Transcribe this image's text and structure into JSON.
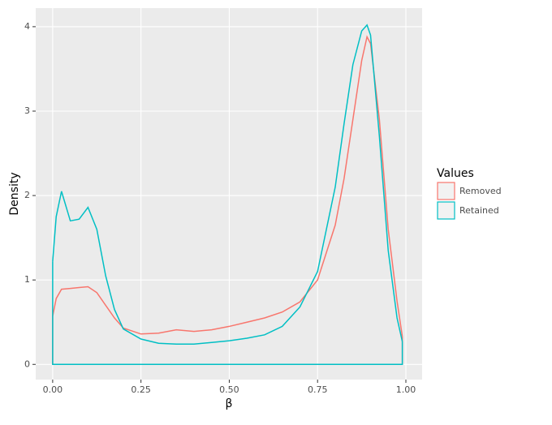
{
  "chart_data": {
    "type": "density",
    "xlabel": "β",
    "ylabel": "Density",
    "legend_title": "Values",
    "legend_position": "right",
    "x": [
      0,
      0.01,
      0.025,
      0.05,
      0.075,
      0.1,
      0.125,
      0.15,
      0.175,
      0.2,
      0.25,
      0.3,
      0.35,
      0.4,
      0.45,
      0.5,
      0.55,
      0.6,
      0.65,
      0.7,
      0.75,
      0.8,
      0.825,
      0.85,
      0.875,
      0.89,
      0.9,
      0.925,
      0.95,
      0.975,
      0.99
    ],
    "series": [
      {
        "name": "Removed",
        "color": "#f8766d",
        "values": [
          0.57,
          0.78,
          0.89,
          0.9,
          0.91,
          0.92,
          0.85,
          0.7,
          0.55,
          0.43,
          0.36,
          0.37,
          0.41,
          0.39,
          0.41,
          0.45,
          0.5,
          0.55,
          0.62,
          0.74,
          1.0,
          1.65,
          2.2,
          2.9,
          3.6,
          3.88,
          3.8,
          2.9,
          1.6,
          0.75,
          0.33
        ]
      },
      {
        "name": "Retained",
        "color": "#00bfc4",
        "values": [
          1.22,
          1.75,
          2.05,
          1.7,
          1.72,
          1.86,
          1.6,
          1.05,
          0.65,
          0.42,
          0.3,
          0.25,
          0.24,
          0.24,
          0.26,
          0.28,
          0.31,
          0.35,
          0.45,
          0.68,
          1.1,
          2.1,
          2.85,
          3.55,
          3.95,
          4.02,
          3.9,
          2.7,
          1.35,
          0.55,
          0.27
        ]
      }
    ],
    "xlim": [
      -0.048,
      1.046
    ],
    "ylim": [
      -0.18,
      4.22
    ],
    "xticks": [
      {
        "value": 0,
        "label": "0.00"
      },
      0.25,
      {
        "value": 0.5,
        "label": "0.50"
      },
      0.75,
      {
        "value": 1,
        "label": "1.00"
      }
    ],
    "yticks": [
      0,
      1,
      2,
      3,
      4
    ],
    "grid": true
  }
}
